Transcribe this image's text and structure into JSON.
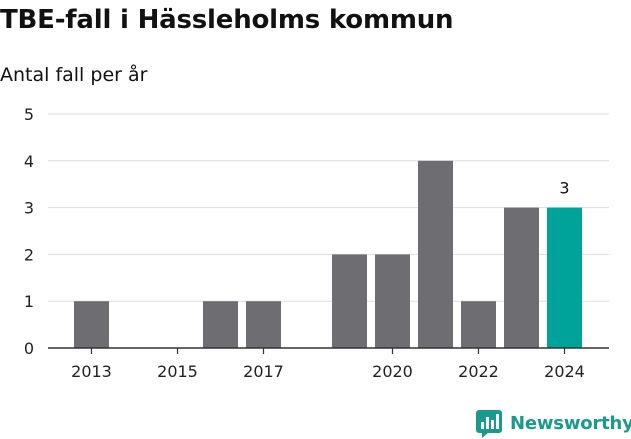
{
  "chart_data": {
    "type": "bar",
    "title": "TBE-fall i Hässleholms kommun",
    "subtitle": "Antal fall per år",
    "categories": [
      2013,
      2014,
      2015,
      2016,
      2017,
      2018,
      2019,
      2020,
      2021,
      2022,
      2023,
      2024
    ],
    "values": [
      1,
      0,
      0,
      1,
      1,
      0,
      2,
      2,
      4,
      1,
      3,
      3
    ],
    "x_tick_labels": [
      "2013",
      "2015",
      "2017",
      "2020",
      "2022",
      "2024"
    ],
    "ylim": [
      0,
      5
    ],
    "y_ticks": [
      0,
      1,
      2,
      3,
      4,
      5
    ],
    "grid": true,
    "highlight": {
      "category": 2024,
      "label": "3"
    },
    "colors": {
      "bar": "#6e6d72",
      "highlight": "#00a39a",
      "grid": "#dddddd",
      "axis": "#333333"
    }
  },
  "brand": {
    "name": "Newsworthy",
    "icon": "bar-chart-speech-bubble-icon",
    "color": "#1a9a8c"
  }
}
